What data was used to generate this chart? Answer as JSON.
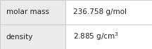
{
  "rows": [
    {
      "label": "molar mass",
      "value": "236.758 g/mol",
      "superscript": null
    },
    {
      "label": "density",
      "value": "2.885 g/cm$^{3}$",
      "superscript": null
    }
  ],
  "bg_label": "#ebebeb",
  "bg_value": "#ffffff",
  "border_color": "#c8c8c8",
  "text_color": "#222222",
  "label_fontsize": 7.5,
  "value_fontsize": 7.5,
  "col_split": 0.43,
  "fig_width": 2.16,
  "fig_height": 0.7,
  "dpi": 100
}
